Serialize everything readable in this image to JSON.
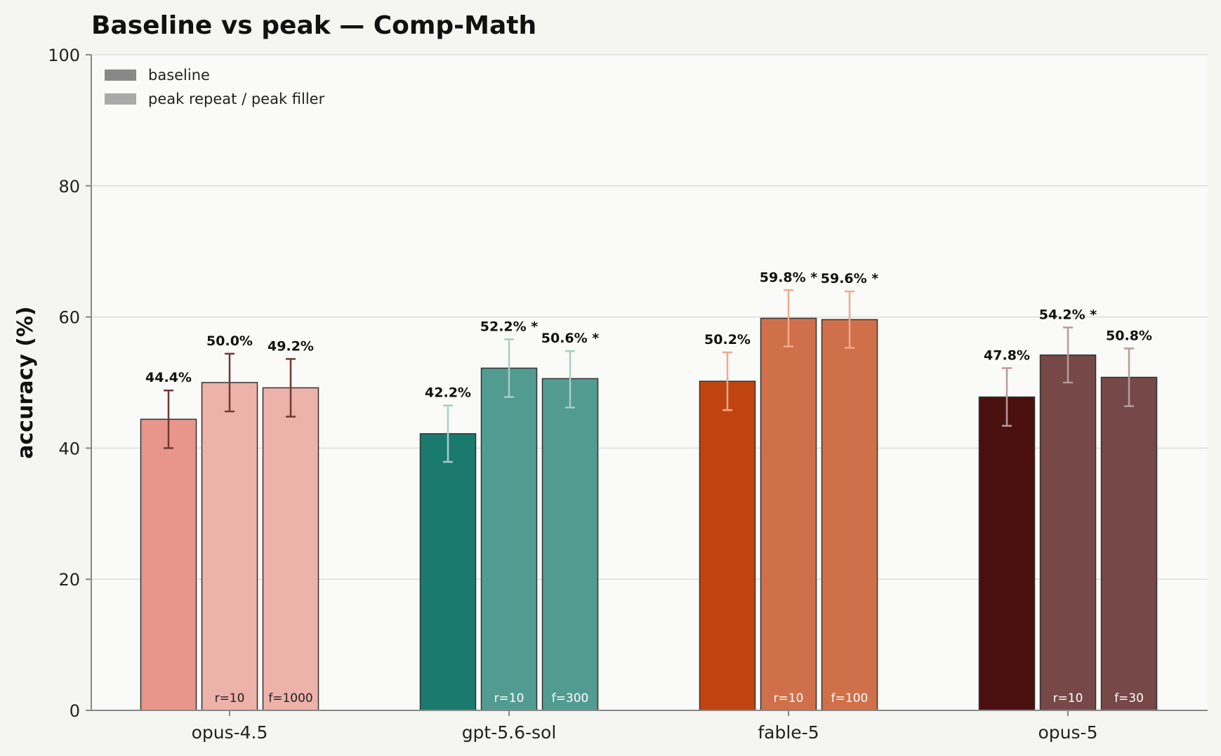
{
  "chart_data": {
    "type": "bar",
    "title": "Baseline vs peak — Comp-Math",
    "ylabel": "accuracy (%)",
    "xlabel": "",
    "ylim": [
      0,
      100
    ],
    "yticks": [
      0,
      20,
      40,
      60,
      80,
      100
    ],
    "grid": true,
    "legend": {
      "placement": "top-left",
      "entries": [
        {
          "label": "baseline",
          "color": "#888888"
        },
        {
          "label": "peak repeat / peak filler",
          "color": "#aaaaaa"
        }
      ]
    },
    "categories": [
      "opus-4.5",
      "gpt-5.6-sol",
      "fable-5",
      "opus-5"
    ],
    "groups": [
      {
        "name": "opus-4.5",
        "bars": [
          {
            "role": "baseline",
            "value": 44.4,
            "err_low": 40.0,
            "err_high": 48.8,
            "label": "44.4%",
            "bar_label": "",
            "color": "#e8968b",
            "error_color": "#6e3a34"
          },
          {
            "role": "peak repeat",
            "value": 50.0,
            "err_low": 45.6,
            "err_high": 54.4,
            "label": "50.0%",
            "bar_label": "r=10",
            "color": "#edb2aa",
            "error_color": "#6e3a34"
          },
          {
            "role": "peak filler",
            "value": 49.2,
            "err_low": 44.8,
            "err_high": 53.6,
            "label": "49.2%",
            "bar_label": "f=1000",
            "color": "#edb2aa",
            "error_color": "#6e3a34"
          }
        ]
      },
      {
        "name": "gpt-5.6-sol",
        "bars": [
          {
            "role": "baseline",
            "value": 42.2,
            "err_low": 37.9,
            "err_high": 46.5,
            "label": "42.2%",
            "bar_label": "",
            "color": "#1b7a6e",
            "error_color": "#a9cdc7"
          },
          {
            "role": "peak repeat",
            "value": 52.2,
            "err_low": 47.8,
            "err_high": 56.6,
            "label": "52.2% *",
            "bar_label": "r=10",
            "color": "#529b91",
            "error_color": "#a9cdc7"
          },
          {
            "role": "peak filler",
            "value": 50.6,
            "err_low": 46.2,
            "err_high": 54.8,
            "label": "50.6% *",
            "bar_label": "f=300",
            "color": "#529b91",
            "error_color": "#a9cdc7"
          }
        ]
      },
      {
        "name": "fable-5",
        "bars": [
          {
            "role": "baseline",
            "value": 50.2,
            "err_low": 45.8,
            "err_high": 54.6,
            "label": "50.2%",
            "bar_label": "",
            "color": "#c0440f",
            "error_color": "#eeaa90"
          },
          {
            "role": "peak repeat",
            "value": 59.8,
            "err_low": 55.5,
            "err_high": 64.1,
            "label": "59.8% *",
            "bar_label": "r=10",
            "color": "#d0704a",
            "error_color": "#eeaa90"
          },
          {
            "role": "peak filler",
            "value": 59.6,
            "err_low": 55.3,
            "err_high": 63.9,
            "label": "59.6% *",
            "bar_label": "f=100",
            "color": "#d0704a",
            "error_color": "#eeaa90"
          }
        ]
      },
      {
        "name": "opus-5",
        "bars": [
          {
            "role": "baseline",
            "value": 47.8,
            "err_low": 43.4,
            "err_high": 52.2,
            "label": "47.8%",
            "bar_label": "",
            "color": "#4a1010",
            "error_color": "#b89a9a"
          },
          {
            "role": "peak repeat",
            "value": 54.2,
            "err_low": 50.0,
            "err_high": 58.4,
            "label": "54.2% *",
            "bar_label": "r=10",
            "color": "#764848",
            "error_color": "#b89a9a"
          },
          {
            "role": "peak filler",
            "value": 50.8,
            "err_low": 46.4,
            "err_high": 55.2,
            "label": "50.8%",
            "bar_label": "f=30",
            "color": "#764848",
            "error_color": "#b89a9a"
          }
        ]
      }
    ]
  }
}
